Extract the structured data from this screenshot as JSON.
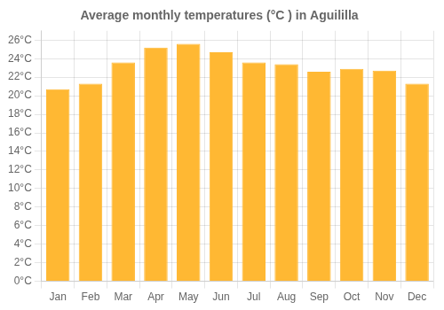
{
  "chart_data": {
    "type": "bar",
    "title": "Average monthly temperatures (°C ) in Aguililla",
    "categories": [
      "Jan",
      "Feb",
      "Mar",
      "Apr",
      "May",
      "Jun",
      "Jul",
      "Aug",
      "Sep",
      "Oct",
      "Nov",
      "Dec"
    ],
    "values": [
      20.7,
      21.3,
      23.6,
      25.2,
      25.6,
      24.7,
      23.6,
      23.4,
      22.6,
      22.9,
      22.7,
      21.3
    ],
    "color": "#FFB833",
    "ylim": [
      0,
      27
    ],
    "yticks": [
      {
        "value": 0,
        "label": "0°C"
      },
      {
        "value": 2,
        "label": "2°C"
      },
      {
        "value": 4,
        "label": "4°C"
      },
      {
        "value": 6,
        "label": "6°C"
      },
      {
        "value": 8,
        "label": "8°C"
      },
      {
        "value": 10,
        "label": "10°C"
      },
      {
        "value": 12,
        "label": "12°C"
      },
      {
        "value": 14,
        "label": "14°C"
      },
      {
        "value": 16,
        "label": "16°C"
      },
      {
        "value": 18,
        "label": "18°C"
      },
      {
        "value": 20,
        "label": "20°C"
      },
      {
        "value": 22,
        "label": "22°C"
      },
      {
        "value": 24,
        "label": "24°C"
      },
      {
        "value": 26,
        "label": "26°C"
      }
    ],
    "grid": true
  }
}
